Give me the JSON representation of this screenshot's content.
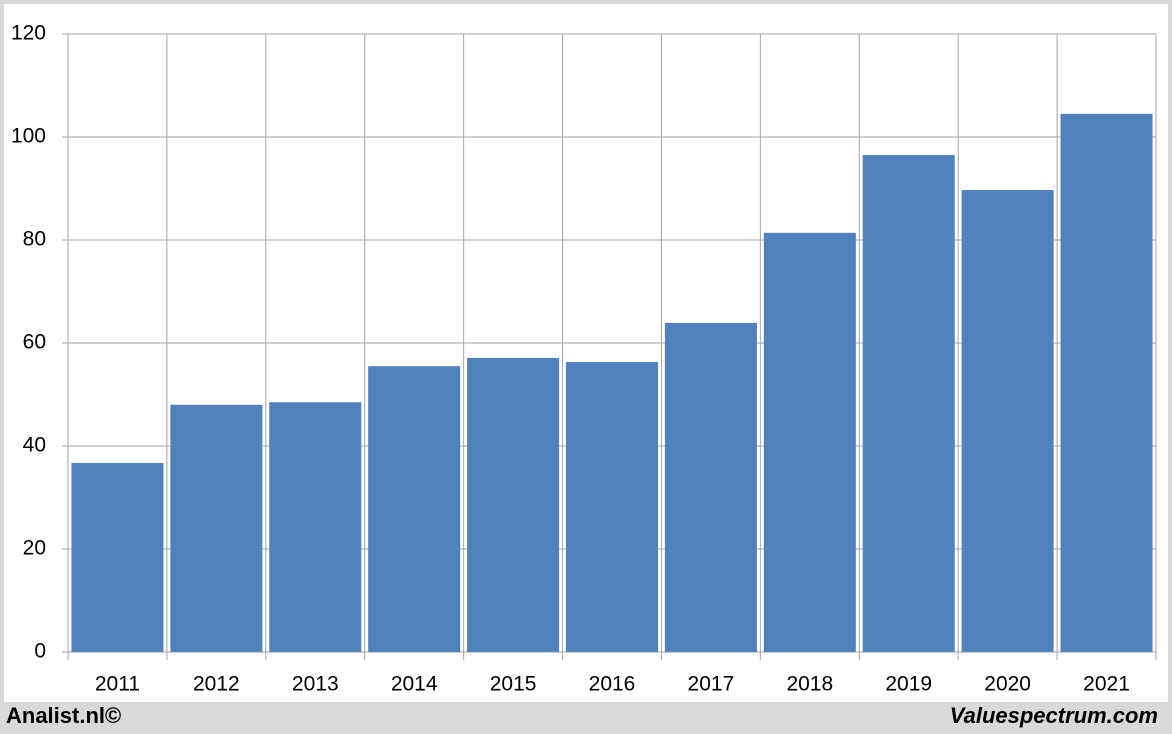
{
  "chart_data": {
    "type": "bar",
    "categories": [
      "2011",
      "2012",
      "2013",
      "2014",
      "2015",
      "2016",
      "2017",
      "2018",
      "2019",
      "2020",
      "2021"
    ],
    "values": [
      36.7,
      48.0,
      48.5,
      55.5,
      57.1,
      56.3,
      63.9,
      81.4,
      96.5,
      89.7,
      104.5
    ],
    "color": "#4f81bd",
    "ylim": [
      0,
      120
    ],
    "yticks": [
      0,
      20,
      40,
      60,
      80,
      100,
      120
    ],
    "grid": true
  },
  "footer": {
    "left": "Analist.nl©",
    "right": "Valuespectrum.com"
  }
}
